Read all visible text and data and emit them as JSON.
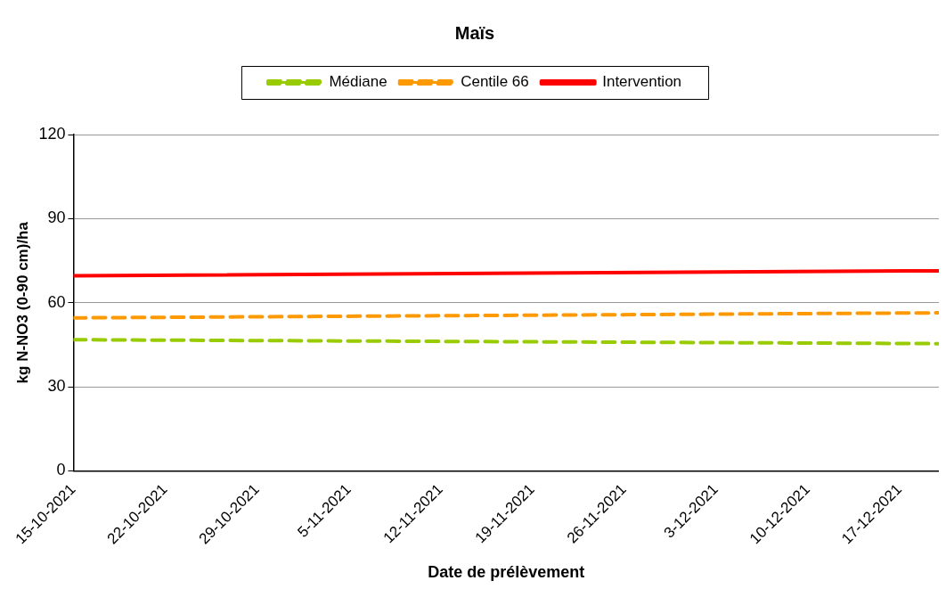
{
  "chart_data": {
    "type": "line",
    "title": "Maïs",
    "xlabel": "Date de prélèvement",
    "ylabel": "kg N-NO3 (0-90 cm)/ha",
    "x": [
      "2021-10-15",
      "2021-12-20"
    ],
    "series": [
      {
        "name": "Médiane",
        "color": "#99cc00",
        "values": [
          46.8,
          45.4
        ],
        "line_style": "dashed"
      },
      {
        "name": "Centile 66",
        "color": "#ff9900",
        "values": [
          54.6,
          56.4
        ],
        "line_style": "dashed"
      },
      {
        "name": "Intervention",
        "color": "#ff0000",
        "values": [
          69.6,
          71.4
        ],
        "line_style": "solid"
      }
    ],
    "xlim": [
      "2021-10-15",
      "2021-12-20"
    ],
    "xticks": [
      {
        "value": "2021-10-15",
        "label": "15-10-2021"
      },
      {
        "value": "2021-10-22",
        "label": "22-10-2021"
      },
      {
        "value": "2021-10-29",
        "label": "29-10-2021"
      },
      {
        "value": "2021-11-05",
        "label": "5-11-2021"
      },
      {
        "value": "2021-11-12",
        "label": "12-11-2021"
      },
      {
        "value": "2021-11-19",
        "label": "19-11-2021"
      },
      {
        "value": "2021-11-26",
        "label": "26-11-2021"
      },
      {
        "value": "2021-12-03",
        "label": "3-12-2021"
      },
      {
        "value": "2021-12-10",
        "label": "10-12-2021"
      },
      {
        "value": "2021-12-17",
        "label": "17-12-2021"
      }
    ],
    "ylim": [
      0,
      120
    ],
    "yticks": [
      0,
      30,
      60,
      90,
      120
    ],
    "grid": "y",
    "legend": "top",
    "marker": "none"
  }
}
